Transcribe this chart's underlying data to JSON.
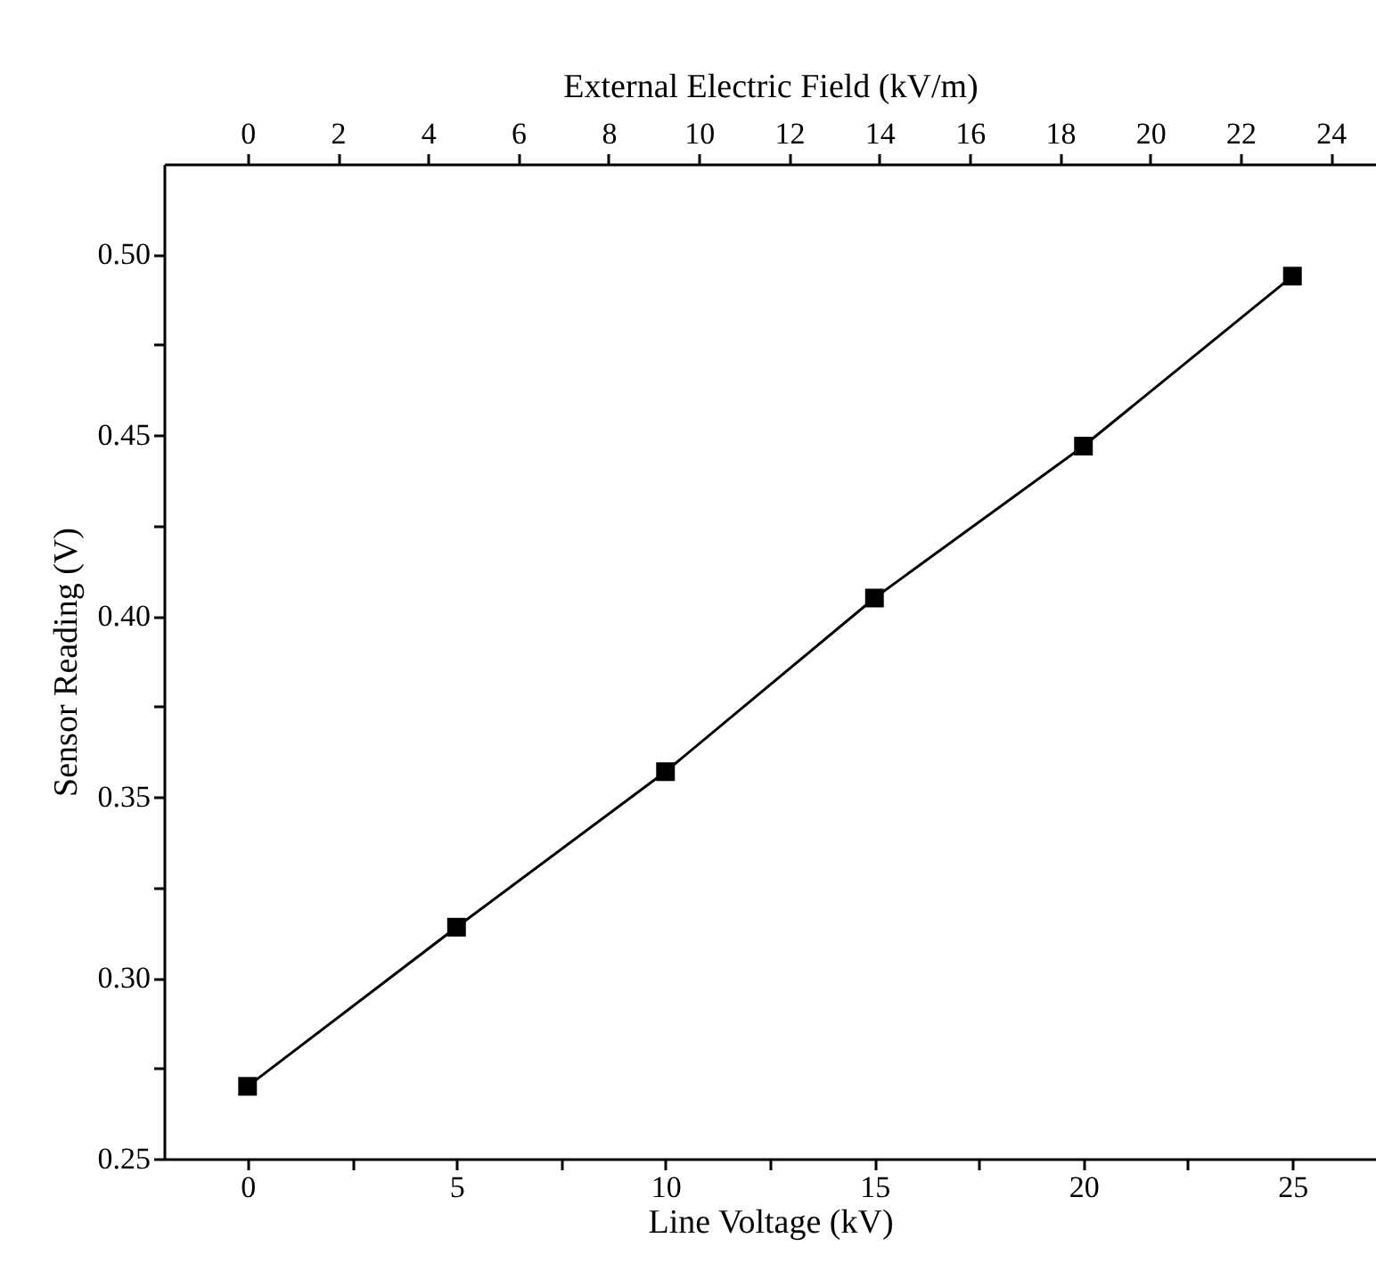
{
  "chart_data": {
    "type": "line",
    "xlabel": "Line Voltage (kV)",
    "ylabel": "Sensor Reading (V)",
    "x2label": "External Electric Field (kV/m)",
    "x": [
      0,
      5,
      10,
      15,
      20,
      25
    ],
    "series": [
      {
        "color": "#000000",
        "values": [
          0.27,
          0.314,
          0.357,
          0.405,
          0.447,
          0.494
        ]
      }
    ],
    "marker": "square",
    "line_style": "solid",
    "grid": false,
    "legend": false,
    "xlim": [
      -2,
      27
    ],
    "xticks": [
      0,
      {
        "value": 2.5,
        "label": null
      },
      5,
      {
        "value": 7.5,
        "label": null
      },
      10,
      {
        "value": 12.5,
        "label": null
      },
      15,
      {
        "value": 17.5,
        "label": null
      },
      20,
      {
        "value": 22.5,
        "label": null
      },
      25
    ],
    "ylim": [
      0.25,
      0.525
    ],
    "yticks": [
      {
        "value": 0.25,
        "label": "0.25"
      },
      {
        "value": 0.275,
        "label": null
      },
      {
        "value": 0.3,
        "label": "0.30"
      },
      {
        "value": 0.325,
        "label": null
      },
      {
        "value": 0.35,
        "label": "0.35"
      },
      {
        "value": 0.375,
        "label": null
      },
      {
        "value": 0.4,
        "label": "0.40"
      },
      {
        "value": 0.425,
        "label": null
      },
      {
        "value": 0.45,
        "label": "0.45"
      },
      {
        "value": 0.475,
        "label": null
      },
      {
        "value": 0.5,
        "label": "0.50"
      }
    ],
    "x2lim": [
      -1.85,
      25
    ],
    "x2ticks": [
      0,
      2,
      4,
      6,
      8,
      10,
      12,
      14,
      16,
      18,
      20,
      22,
      24
    ]
  }
}
